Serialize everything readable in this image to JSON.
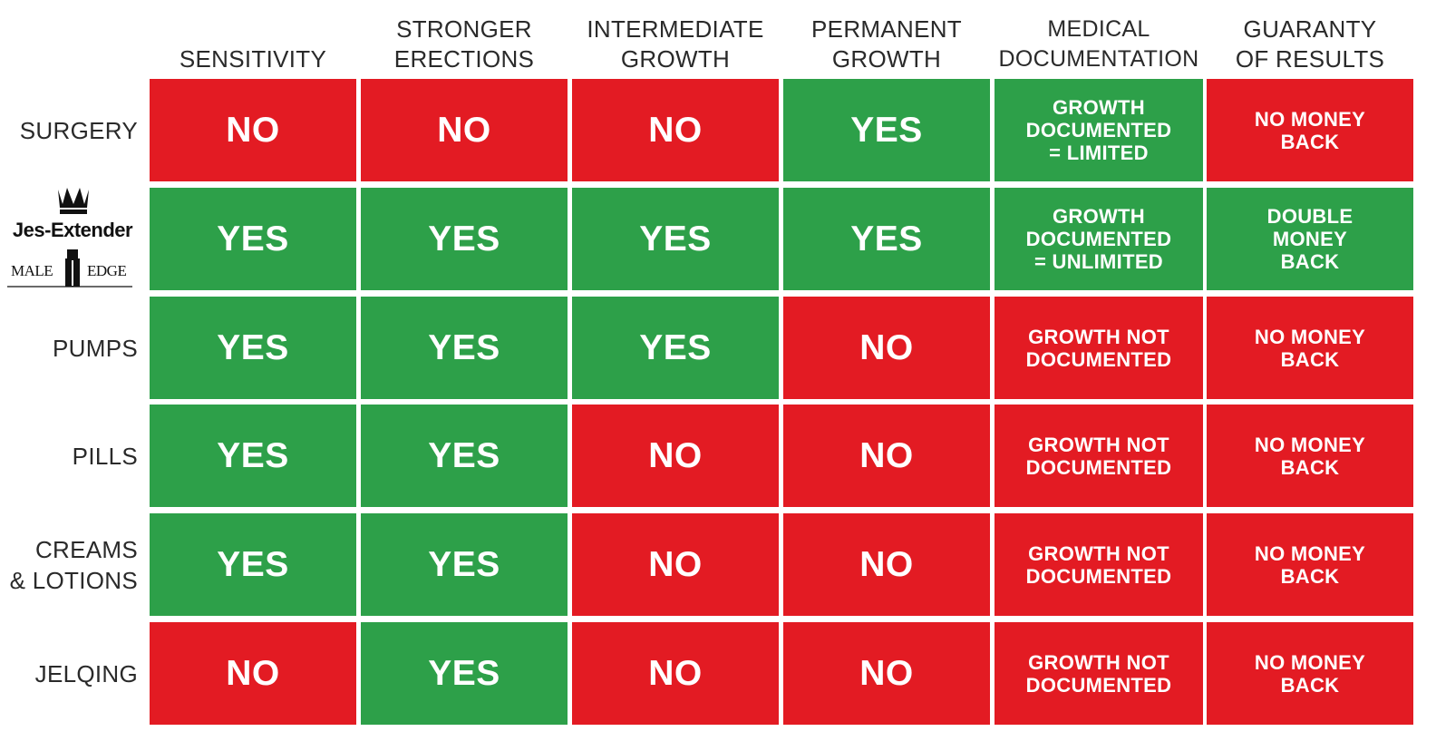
{
  "columns": [
    "SENSITIVITY",
    "STRONGER\nERECTIONS",
    "INTERMEDIATE\nGROWTH",
    "PERMANENT\nGROWTH",
    "MEDICAL\nDOCUMENTATION",
    "GUARANTY\nOF RESULTS"
  ],
  "brand": {
    "name": "Jes-Extender",
    "sub_left": "MALE",
    "sub_right": "EDGE"
  },
  "rows": [
    {
      "label": "SURGERY",
      "cells": [
        {
          "text": "NO",
          "status": "negative"
        },
        {
          "text": "NO",
          "status": "negative"
        },
        {
          "text": "NO",
          "status": "negative"
        },
        {
          "text": "YES",
          "status": "positive"
        },
        {
          "text": "GROWTH\nDOCUMENTED\n= LIMITED",
          "status": "positive"
        },
        {
          "text": "NO MONEY\nBACK",
          "status": "negative"
        }
      ]
    },
    {
      "label": "",
      "cells": [
        {
          "text": "YES",
          "status": "positive"
        },
        {
          "text": "YES",
          "status": "positive"
        },
        {
          "text": "YES",
          "status": "positive"
        },
        {
          "text": "YES",
          "status": "positive"
        },
        {
          "text": "GROWTH\nDOCUMENTED\n= UNLIMITED",
          "status": "positive"
        },
        {
          "text": "DOUBLE\nMONEY\nBACK",
          "status": "positive"
        }
      ]
    },
    {
      "label": "PUMPS",
      "cells": [
        {
          "text": "YES",
          "status": "positive"
        },
        {
          "text": "YES",
          "status": "positive"
        },
        {
          "text": "YES",
          "status": "positive"
        },
        {
          "text": "NO",
          "status": "negative"
        },
        {
          "text": "GROWTH NOT\nDOCUMENTED",
          "status": "negative"
        },
        {
          "text": "NO MONEY\nBACK",
          "status": "negative"
        }
      ]
    },
    {
      "label": "PILLS",
      "cells": [
        {
          "text": "YES",
          "status": "positive"
        },
        {
          "text": "YES",
          "status": "positive"
        },
        {
          "text": "NO",
          "status": "negative"
        },
        {
          "text": "NO",
          "status": "negative"
        },
        {
          "text": "GROWTH NOT\nDOCUMENTED",
          "status": "negative"
        },
        {
          "text": "NO MONEY\nBACK",
          "status": "negative"
        }
      ]
    },
    {
      "label": "CREAMS\n& LOTIONS",
      "cells": [
        {
          "text": "YES",
          "status": "positive"
        },
        {
          "text": "YES",
          "status": "positive"
        },
        {
          "text": "NO",
          "status": "negative"
        },
        {
          "text": "NO",
          "status": "negative"
        },
        {
          "text": "GROWTH NOT\nDOCUMENTED",
          "status": "negative"
        },
        {
          "text": "NO MONEY\nBACK",
          "status": "negative"
        }
      ]
    },
    {
      "label": "JELQING",
      "cells": [
        {
          "text": "NO",
          "status": "negative"
        },
        {
          "text": "YES",
          "status": "positive"
        },
        {
          "text": "NO",
          "status": "negative"
        },
        {
          "text": "NO",
          "status": "negative"
        },
        {
          "text": "GROWTH NOT\nDOCUMENTED",
          "status": "negative"
        },
        {
          "text": "NO MONEY\nBACK",
          "status": "negative"
        }
      ]
    }
  ],
  "colors": {
    "positive": "#2da049",
    "negative": "#e31b23",
    "label_text": "#2a2a2a",
    "cell_text": "#ffffff"
  }
}
